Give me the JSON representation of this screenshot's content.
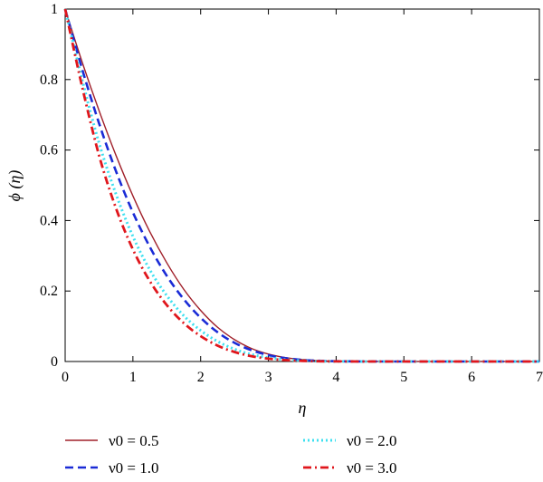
{
  "chart_data": {
    "type": "line",
    "xlabel": "η",
    "ylabel": "ϕ (η)",
    "xlim": [
      0,
      7
    ],
    "ylim": [
      0,
      1
    ],
    "xticks": [
      "0",
      "1",
      "2",
      "3",
      "4",
      "5",
      "6",
      "7"
    ],
    "yticks": [
      "0",
      "0.2",
      "0.4",
      "0.6",
      "0.8",
      "1"
    ],
    "grid": false,
    "legend_position": "bottom",
    "x": [
      0,
      0.25,
      0.5,
      0.75,
      1,
      1.25,
      1.5,
      1.75,
      2,
      2.25,
      2.5,
      2.75,
      3,
      3.25,
      3.5,
      3.75,
      4,
      4.5,
      5,
      5.5,
      6,
      6.5,
      7
    ],
    "series": [
      {
        "name": "ν0 = 0.5",
        "color": "#a0202a",
        "dash": "solid",
        "values": [
          1,
          0.85,
          0.712,
          0.585,
          0.47,
          0.368,
          0.28,
          0.205,
          0.145,
          0.097,
          0.062,
          0.037,
          0.021,
          0.011,
          0.0055,
          0.0025,
          0.001,
          0.0002,
          0,
          0,
          0,
          0,
          0
        ]
      },
      {
        "name": "ν0 = 1.0",
        "color": "#1a2bd6",
        "dash": "dashed",
        "values": [
          1,
          0.83,
          0.676,
          0.54,
          0.423,
          0.325,
          0.243,
          0.177,
          0.124,
          0.083,
          0.053,
          0.032,
          0.018,
          0.0095,
          0.0045,
          0.002,
          0.0008,
          0.0001,
          0,
          0,
          0,
          0,
          0
        ]
      },
      {
        "name": "ν0 = 2.0",
        "color": "#3fe0f0",
        "dash": "dotted",
        "values": [
          1,
          0.8,
          0.62,
          0.475,
          0.355,
          0.26,
          0.187,
          0.13,
          0.088,
          0.057,
          0.035,
          0.02,
          0.011,
          0.0055,
          0.0025,
          0.001,
          0.0004,
          0.0001,
          0,
          0,
          0,
          0,
          0
        ]
      },
      {
        "name": "ν0 = 3.0",
        "color": "#e0161c",
        "dash": "dashdot",
        "values": [
          1,
          0.78,
          0.585,
          0.435,
          0.318,
          0.228,
          0.16,
          0.109,
          0.072,
          0.045,
          0.027,
          0.015,
          0.008,
          0.004,
          0.0018,
          0.0007,
          0.0003,
          0,
          0,
          0,
          0,
          0,
          0
        ]
      }
    ]
  }
}
